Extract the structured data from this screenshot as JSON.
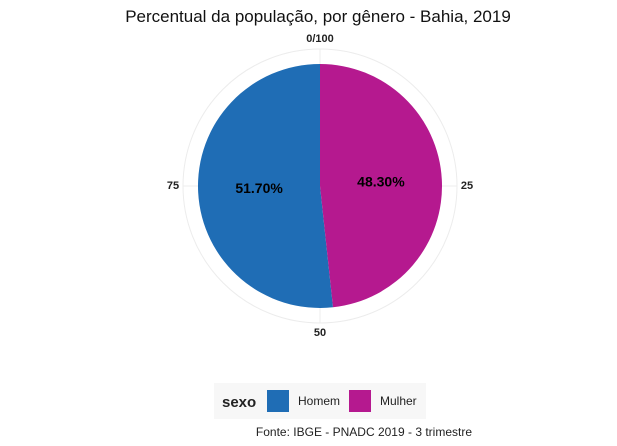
{
  "chart_data": {
    "type": "pie",
    "title": "Percentual da população, por gênero - Bahia, 2019",
    "categories": [
      "Homem",
      "Mulher"
    ],
    "values": [
      51.7,
      48.3
    ],
    "data_labels": [
      "51.70%",
      "48.30%"
    ],
    "angle_ticks": [
      {
        "value": 0,
        "label": "0/100"
      },
      {
        "value": 25,
        "label": "25"
      },
      {
        "value": 50,
        "label": "50"
      },
      {
        "value": 75,
        "label": "75"
      }
    ],
    "legend": {
      "title": "sexo",
      "placement": "bottom",
      "entries": [
        "Homem",
        "Mulher"
      ]
    },
    "colors": {
      "Homem": "#1f6db5",
      "Mulher": "#b5198f"
    },
    "caption": "Fonte: IBGE - PNADC 2019 - 3 trimestre",
    "grid": true
  }
}
